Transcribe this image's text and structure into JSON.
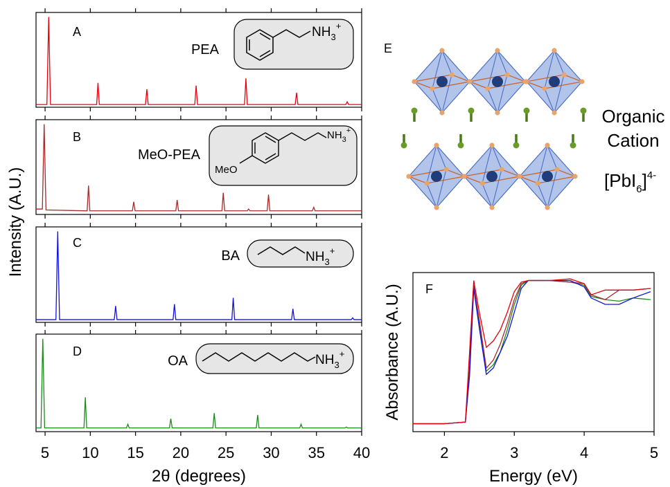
{
  "chart_data": [
    {
      "type": "line",
      "panel": "A",
      "label": "PEA",
      "group": [
        "NH",
        "3",
        "+"
      ],
      "color": "#e8000b",
      "x": [
        4,
        5.2,
        5.4,
        5.6,
        10.7,
        10.85,
        11,
        16.1,
        16.25,
        16.4,
        21.55,
        21.7,
        21.85,
        27.05,
        27.2,
        27.35,
        32.65,
        32.8,
        32.95,
        38.25,
        38.4,
        38.55,
        40
      ],
      "values": [
        0.03,
        0.03,
        1.0,
        0.03,
        0.03,
        0.27,
        0.03,
        0.03,
        0.2,
        0.03,
        0.03,
        0.24,
        0.03,
        0.03,
        0.32,
        0.03,
        0.03,
        0.16,
        0.03,
        0.03,
        0.06,
        0.03,
        0.03
      ],
      "xlim": [
        4,
        40
      ],
      "ylim": [
        0,
        1.05
      ],
      "ylabel": "Intensity (A.U.)"
    },
    {
      "type": "line",
      "panel": "B",
      "label": "MeO-PEA",
      "substituent": "MeO",
      "group": [
        "NH",
        "3",
        "+"
      ],
      "color": "#a52a2a",
      "x": [
        4,
        4.7,
        4.9,
        5.1,
        9.65,
        9.8,
        9.95,
        14.65,
        14.8,
        14.95,
        19.45,
        19.6,
        19.75,
        24.55,
        24.7,
        24.85,
        27.35,
        27.5,
        27.65,
        29.55,
        29.7,
        29.85,
        34.55,
        34.7,
        34.85,
        40
      ],
      "values": [
        0.06,
        0.06,
        1.0,
        0.05,
        0.04,
        0.32,
        0.04,
        0.04,
        0.14,
        0.04,
        0.04,
        0.16,
        0.04,
        0.04,
        0.24,
        0.04,
        0.04,
        0.06,
        0.04,
        0.04,
        0.22,
        0.04,
        0.04,
        0.08,
        0.04,
        0.04
      ],
      "xlim": [
        4,
        40
      ],
      "ylim": [
        0,
        1.05
      ]
    },
    {
      "type": "line",
      "panel": "C",
      "label": "BA",
      "group": [
        "NH",
        "3",
        "+"
      ],
      "color": "#1010e0",
      "x": [
        4,
        6.2,
        6.4,
        6.6,
        12.65,
        12.8,
        12.95,
        19.15,
        19.3,
        19.45,
        25.65,
        25.8,
        25.95,
        32.25,
        32.4,
        32.55,
        38.85,
        39,
        39.15,
        40
      ],
      "values": [
        0.03,
        0.03,
        1.0,
        0.03,
        0.03,
        0.18,
        0.03,
        0.03,
        0.2,
        0.03,
        0.03,
        0.27,
        0.03,
        0.03,
        0.15,
        0.03,
        0.03,
        0.05,
        0.03,
        0.03
      ],
      "xlim": [
        4,
        40
      ],
      "ylim": [
        0,
        1.05
      ]
    },
    {
      "type": "line",
      "panel": "D",
      "label": "OA",
      "group": [
        "NH",
        "3",
        "+"
      ],
      "color": "#1a8a1a",
      "x": [
        4,
        4.55,
        4.75,
        4.95,
        9.3,
        9.45,
        9.6,
        14.0,
        14.15,
        14.3,
        18.75,
        18.9,
        19.05,
        23.55,
        23.7,
        23.85,
        28.35,
        28.5,
        28.65,
        33.15,
        33.3,
        33.45,
        38.15,
        38.3,
        38.45,
        40
      ],
      "values": [
        0.04,
        0.04,
        1.0,
        0.04,
        0.04,
        0.37,
        0.04,
        0.04,
        0.08,
        0.04,
        0.04,
        0.14,
        0.04,
        0.04,
        0.2,
        0.04,
        0.04,
        0.18,
        0.04,
        0.04,
        0.08,
        0.04,
        0.04,
        0.05,
        0.04,
        0.04
      ],
      "xlim": [
        4,
        40
      ],
      "ylim": [
        0,
        1.05
      ],
      "xticks": [
        5,
        10,
        15,
        20,
        25,
        30,
        35,
        40
      ],
      "xlabel": "2θ (degrees)"
    },
    {
      "type": "line",
      "panel": "F",
      "xlabel": "Energy (eV)",
      "ylabel": "Absorbance (A.U.)",
      "xlim": [
        1.55,
        5
      ],
      "ylim": [
        0,
        1
      ],
      "xticks": [
        2,
        3,
        4,
        5
      ],
      "x": [
        1.55,
        2.0,
        2.3,
        2.36,
        2.42,
        2.5,
        2.6,
        2.7,
        2.8,
        2.9,
        3.0,
        3.1,
        3.2,
        3.5,
        3.8,
        4.0,
        4.1,
        4.3,
        4.5,
        4.7,
        4.95
      ],
      "series": [
        {
          "color": "#1a8a1a",
          "values": [
            0.05,
            0.05,
            0.06,
            0.38,
            0.92,
            0.68,
            0.38,
            0.42,
            0.5,
            0.64,
            0.8,
            0.92,
            0.95,
            0.95,
            0.94,
            0.92,
            0.85,
            0.83,
            0.82,
            0.84,
            0.83
          ]
        },
        {
          "color": "#a52a2a",
          "values": [
            0.05,
            0.05,
            0.06,
            0.4,
            0.92,
            0.7,
            0.4,
            0.45,
            0.55,
            0.68,
            0.83,
            0.93,
            0.95,
            0.95,
            0.94,
            0.93,
            0.86,
            0.83,
            0.89,
            0.89,
            0.9
          ]
        },
        {
          "color": "#1010e0",
          "values": [
            0.05,
            0.05,
            0.06,
            0.35,
            0.9,
            0.65,
            0.36,
            0.4,
            0.5,
            0.6,
            0.75,
            0.9,
            0.95,
            0.95,
            0.95,
            0.91,
            0.84,
            0.8,
            0.8,
            0.84,
            0.88
          ]
        },
        {
          "color": "#e8000b",
          "values": [
            0.05,
            0.05,
            0.06,
            0.5,
            0.95,
            0.75,
            0.53,
            0.57,
            0.64,
            0.75,
            0.88,
            0.94,
            0.95,
            0.95,
            0.96,
            0.93,
            0.86,
            0.89,
            0.89,
            0.89,
            0.9
          ]
        }
      ]
    }
  ],
  "diagram": {
    "panel": "E",
    "cation": [
      "Organic",
      "Cation"
    ],
    "octahedra": [
      "[PbI",
      "6",
      "]",
      "4-"
    ]
  }
}
